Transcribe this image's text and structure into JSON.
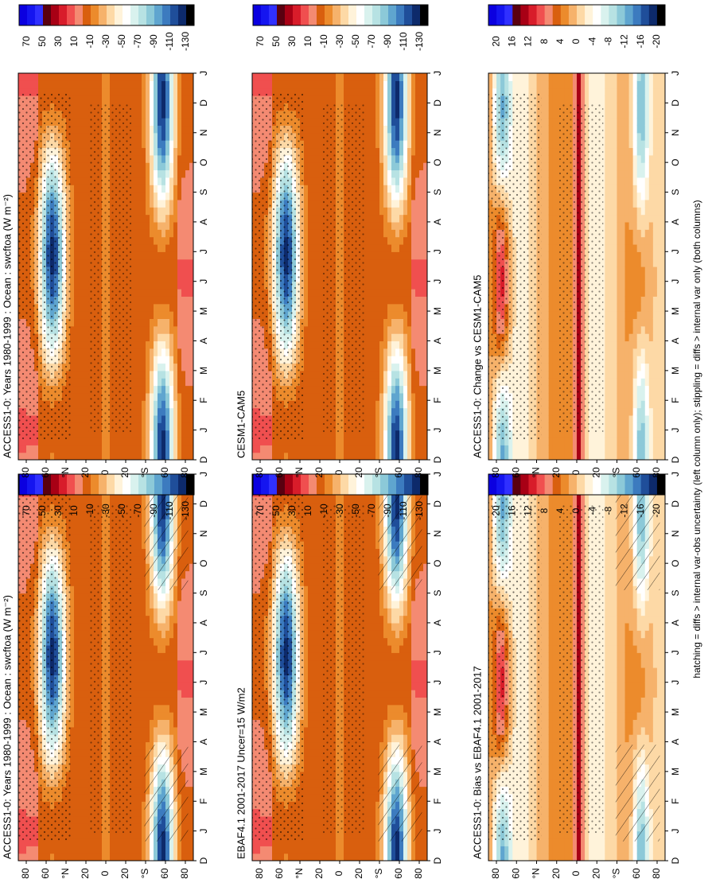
{
  "footnote": "hatching = diffs > internal var-obs uncertainty (left column only); stippling = diffs > internal var only (both columns)",
  "colors": {
    "clim": [
      "#0b00e0",
      "#1515f0",
      "#3030ff",
      "#5a0010",
      "#a80015",
      "#d81c2a",
      "#f04f4f",
      "#f48a72",
      "#d95f0e",
      "#ec8b2c",
      "#f6b26b",
      "#fdd9a6",
      "#fff3da",
      "#ffffff",
      "#d9f2ee",
      "#b7e2e3",
      "#8cc9d8",
      "#5fa5cf",
      "#3c7bbf",
      "#1f4e9a",
      "#0d2a6b",
      "#000000"
    ],
    "diff": [
      "#0b00e0",
      "#1515f0",
      "#3030ff",
      "#5a0010",
      "#a80015",
      "#d81c2a",
      "#f04f4f",
      "#f48a72",
      "#d95f0e",
      "#ec8b2c",
      "#f6b26b",
      "#fdd9a6",
      "#fff3da",
      "#ffffff",
      "#d9f2ee",
      "#b7e2e3",
      "#8cc9d8",
      "#5fa5cf",
      "#3c7bbf",
      "#1f4e9a",
      "#0d2a6b",
      "#000000"
    ]
  },
  "chart_data": [
    {
      "type": "heatmap",
      "panel": "left-top",
      "title": "ACCESS1-0: Years 1980-1999 : Ocean : swcftoa (W m⁻²)",
      "x": [
        "D",
        "J",
        "F",
        "M",
        "A",
        "M",
        "J",
        "J",
        "A",
        "S",
        "O",
        "N",
        "D",
        "J"
      ],
      "y_ticks": [
        "80",
        "60",
        "°N",
        "20",
        "0",
        "20",
        "°S",
        "60",
        "80"
      ],
      "colorbar_labels": [
        "70",
        "50",
        "30",
        "10",
        "-10",
        "-30",
        "-50",
        "-70",
        "-90",
        "-110",
        "-130"
      ],
      "scale": "clim",
      "hatching": true,
      "stippling": true
    },
    {
      "type": "heatmap",
      "panel": "right-top",
      "title": "ACCESS1-0: Years 1980-1999 : Ocean : swcftoa (W m⁻²)",
      "x": [
        "D",
        "J",
        "F",
        "M",
        "A",
        "M",
        "J",
        "J",
        "A",
        "S",
        "O",
        "N",
        "D",
        "J"
      ],
      "y_ticks": [
        "80",
        "60",
        "°N",
        "20",
        "0",
        "20",
        "°S",
        "60",
        "80"
      ],
      "colorbar_labels": [
        "70",
        "50",
        "30",
        "10",
        "-10",
        "-30",
        "-50",
        "-70",
        "-90",
        "-110",
        "-130"
      ],
      "scale": "clim",
      "hatching": false,
      "stippling": true
    },
    {
      "type": "heatmap",
      "panel": "left-middle",
      "title": "EBAF4.1 2001-2017 Uncer=15 W/m2",
      "x": [
        "D",
        "J",
        "F",
        "M",
        "A",
        "M",
        "J",
        "J",
        "A",
        "S",
        "O",
        "N",
        "D",
        "J"
      ],
      "y_ticks": [
        "80",
        "60",
        "°N",
        "20",
        "0",
        "20",
        "°S",
        "60",
        "80"
      ],
      "colorbar_labels": [
        "70",
        "50",
        "30",
        "10",
        "-10",
        "-30",
        "-50",
        "-70",
        "-90",
        "-110",
        "-130"
      ],
      "scale": "clim",
      "hatching": true,
      "stippling": true
    },
    {
      "type": "heatmap",
      "panel": "right-middle",
      "title": "CESM1-CAM5",
      "x": [
        "D",
        "J",
        "F",
        "M",
        "A",
        "M",
        "J",
        "J",
        "A",
        "S",
        "O",
        "N",
        "D",
        "J"
      ],
      "y_ticks": [
        "80",
        "60",
        "°N",
        "20",
        "0",
        "20",
        "°S",
        "60",
        "80"
      ],
      "colorbar_labels": [
        "70",
        "50",
        "30",
        "10",
        "-10",
        "-30",
        "-50",
        "-70",
        "-90",
        "-110",
        "-130"
      ],
      "scale": "clim",
      "hatching": false,
      "stippling": true
    },
    {
      "type": "heatmap",
      "panel": "left-bottom",
      "title": "ACCESS1-0: Bias vs EBAF4.1 2001-2017",
      "x": [
        "D",
        "J",
        "F",
        "M",
        "A",
        "M",
        "J",
        "J",
        "A",
        "S",
        "O",
        "N",
        "D",
        "J"
      ],
      "y_ticks": [
        "80",
        "60",
        "°N",
        "20",
        "0",
        "20",
        "°S",
        "60",
        "80"
      ],
      "colorbar_labels": [
        "20",
        "16",
        "12",
        "8",
        "4",
        "0",
        "-4",
        "-8",
        "-12",
        "-16",
        "-20"
      ],
      "scale": "diff",
      "hatching": true,
      "stippling": true
    },
    {
      "type": "heatmap",
      "panel": "right-bottom",
      "title": "ACCESS1-0: Change vs CESM1-CAM5",
      "x": [
        "D",
        "J",
        "F",
        "M",
        "A",
        "M",
        "J",
        "J",
        "A",
        "S",
        "O",
        "N",
        "D",
        "J"
      ],
      "y_ticks": [
        "80",
        "60",
        "°N",
        "20",
        "0",
        "20",
        "°S",
        "60",
        "80"
      ],
      "colorbar_labels": [
        "20",
        "16",
        "12",
        "8",
        "4",
        "0",
        "-4",
        "-8",
        "-12",
        "-16",
        "-20"
      ],
      "scale": "diff",
      "hatching": false,
      "stippling": true
    }
  ]
}
